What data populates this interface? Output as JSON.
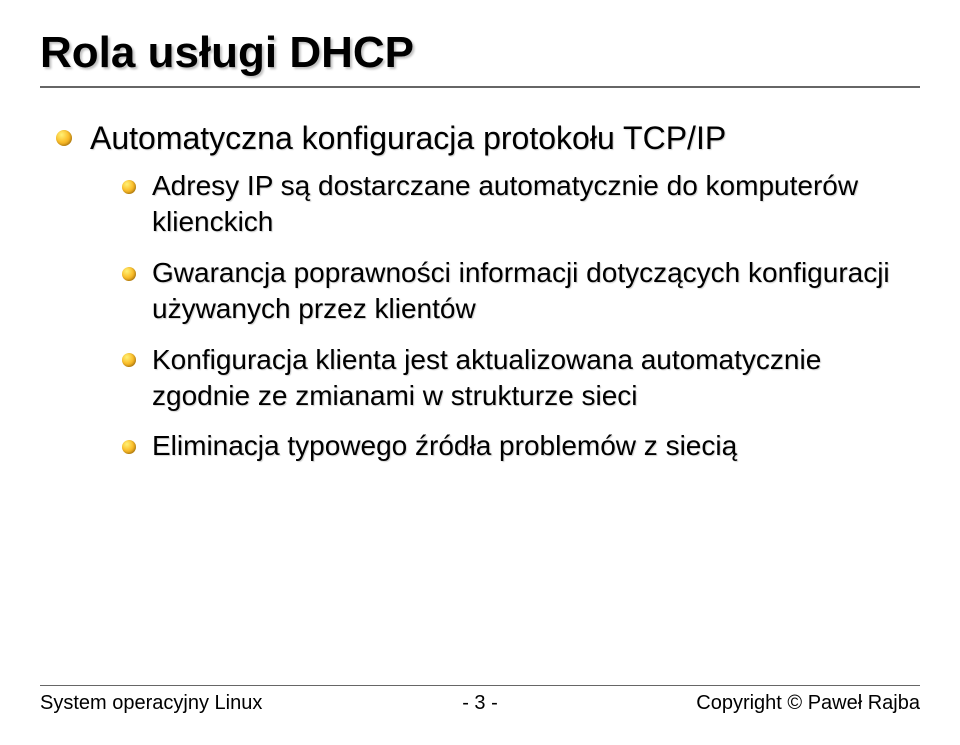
{
  "title": "Rola usługi DHCP",
  "bullets": {
    "l1_0": "Automatyczna konfiguracja protokołu TCP/IP",
    "l2_0": "Adresy IP są dostarczane automatycznie do komputerów klienckich",
    "l2_1": "Gwarancja poprawności informacji dotyczących konfiguracji używanych przez klientów",
    "l2_2": "Konfiguracja klienta jest aktualizowana automatycznie zgodnie ze zmianami w strukturze sieci",
    "l2_3": "Eliminacja typowego źródła problemów z siecią"
  },
  "footer": {
    "left": "System operacyjny Linux",
    "center": "- 3 -",
    "right": "Copyright © Paweł Rajba"
  },
  "style": {
    "background_color": "#ffffff",
    "title_fontsize_pt": 33,
    "body_fontsize_pt": 24,
    "sub_fontsize_pt": 21,
    "footer_fontsize_pt": 15,
    "bullet_gradient": [
      "#fff176",
      "#fbc02d",
      "#d48806"
    ],
    "rule_color": "#666666",
    "text_color": "#000000",
    "shadow_color": "rgba(0,0,0,0.2)"
  }
}
